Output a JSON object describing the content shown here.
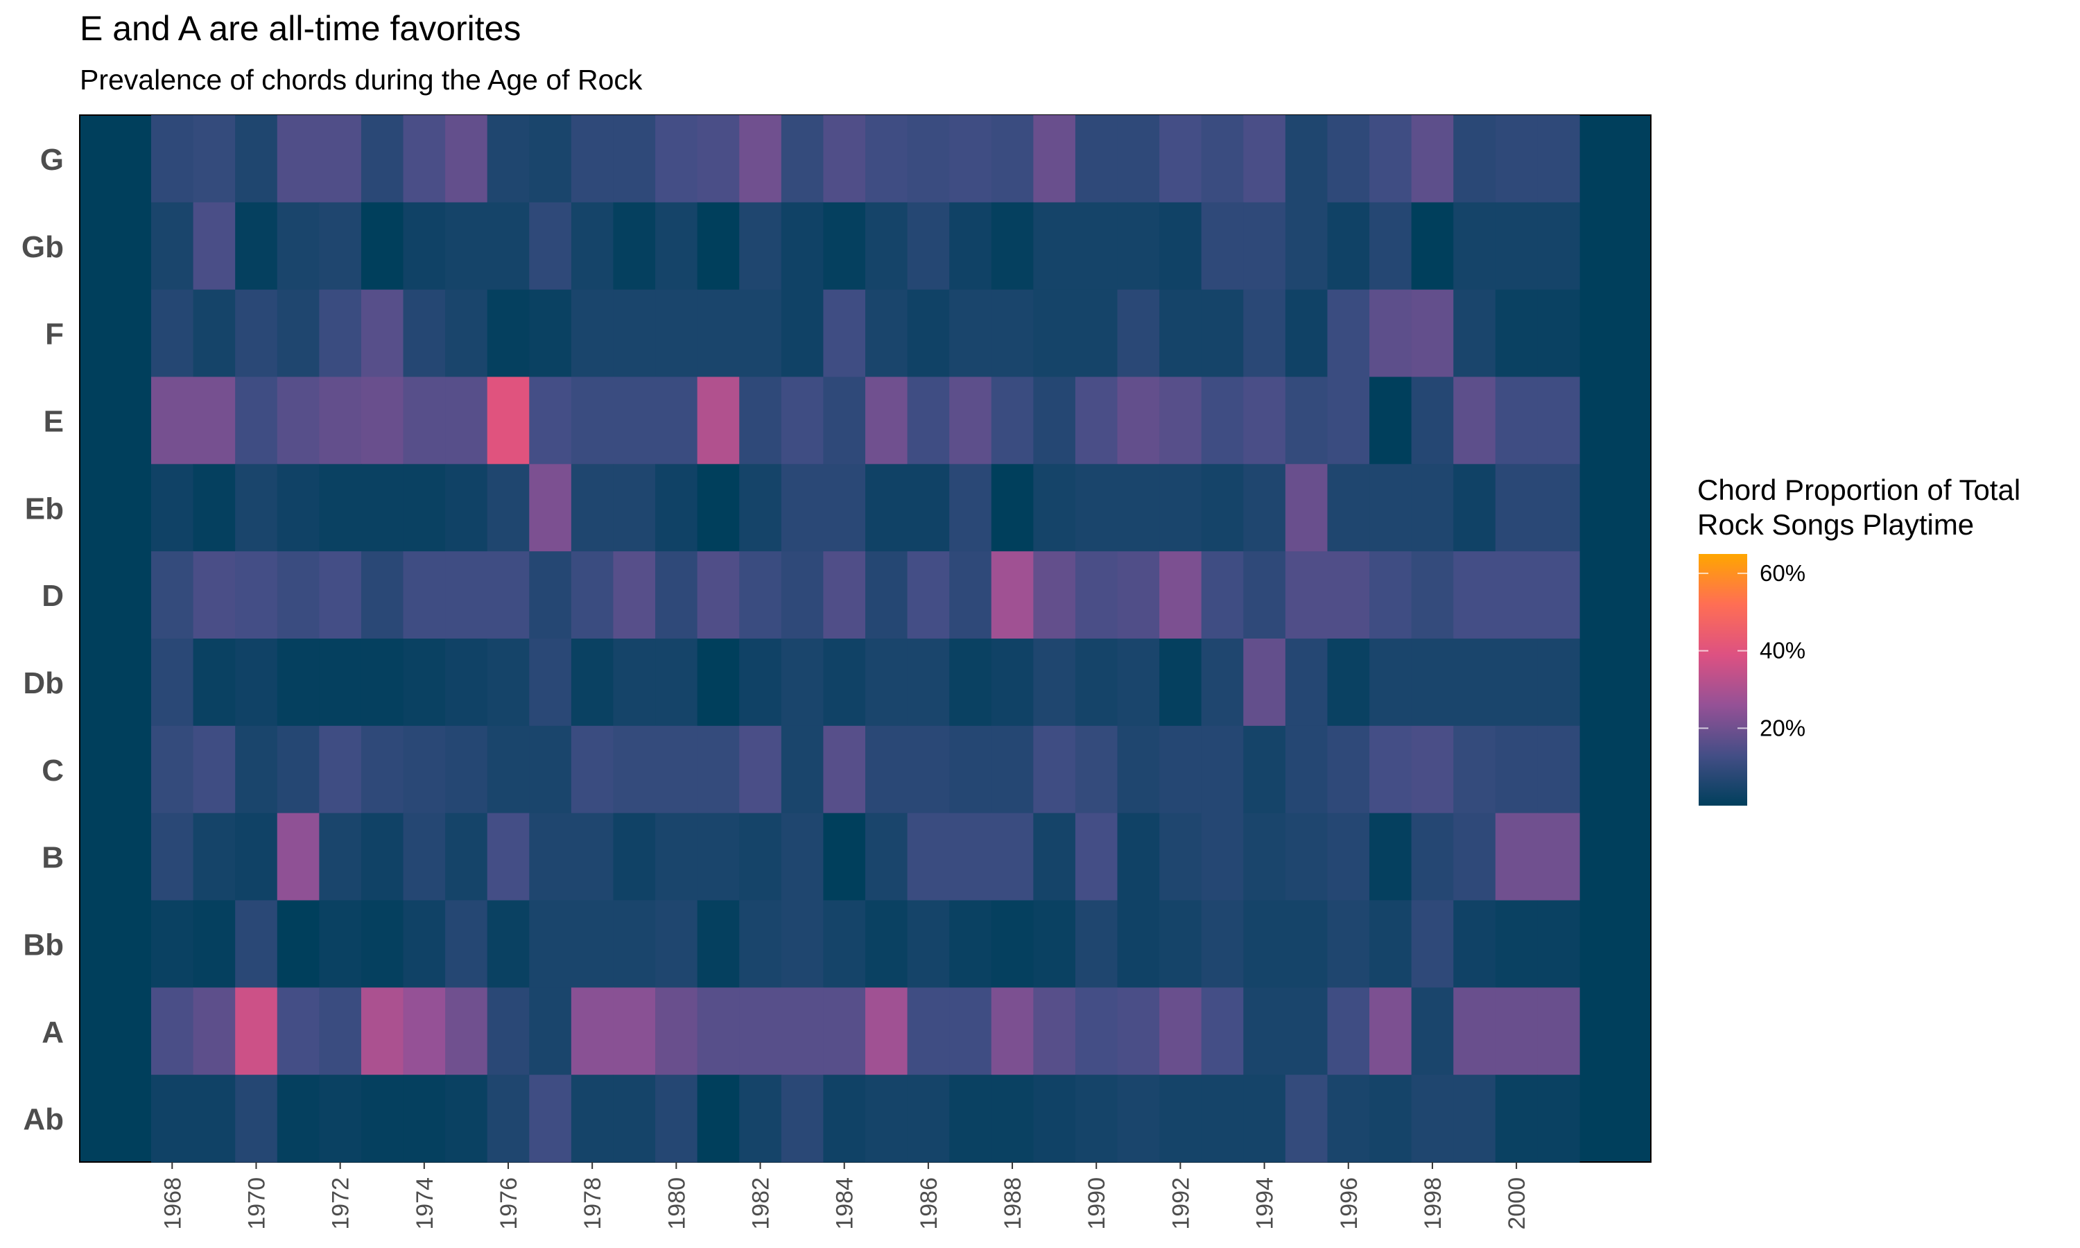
{
  "chart_data": {
    "type": "heatmap",
    "title": "E and A are all-time favorites",
    "subtitle": "Prevalence of chords during the Age of Rock",
    "rows": [
      "G",
      "Gb",
      "F",
      "E",
      "Eb",
      "D",
      "Db",
      "C",
      "B",
      "Bb",
      "A",
      "Ab"
    ],
    "columns": [
      1968,
      1969,
      1970,
      1971,
      1972,
      1973,
      1974,
      1975,
      1976,
      1977,
      1978,
      1979,
      1980,
      1981,
      1982,
      1983,
      1984,
      1985,
      1986,
      1987,
      1988,
      1989,
      1990,
      1991,
      1992,
      1993,
      1994,
      1995,
      1996,
      1997,
      1998,
      1999,
      2000,
      2001
    ],
    "x_ticks": [
      "1968",
      "1970",
      "1972",
      "1974",
      "1976",
      "1978",
      "1980",
      "1982",
      "1984",
      "1986",
      "1988",
      "1990",
      "1992",
      "1994",
      "1996",
      "1998",
      "2000"
    ],
    "x_range": [
      1965.8,
      2003.2
    ],
    "values": [
      [
        9,
        10,
        6,
        15,
        15,
        8,
        14,
        18,
        6,
        5,
        9,
        9,
        13,
        14,
        20,
        10,
        15,
        12,
        11,
        12,
        11,
        19,
        9,
        9,
        13,
        11,
        14,
        6,
        9,
        12,
        17,
        8,
        9,
        9
      ],
      [
        5,
        14,
        1,
        5,
        6,
        0,
        3,
        4,
        4,
        9,
        4,
        1,
        4,
        0,
        6,
        3,
        1,
        4,
        7,
        3,
        1,
        4,
        4,
        4,
        3,
        9,
        9,
        6,
        3,
        7,
        0,
        4,
        4,
        4
      ],
      [
        7,
        4,
        8,
        6,
        11,
        16,
        7,
        5,
        1,
        2,
        5,
        5,
        5,
        5,
        5,
        3,
        12,
        5,
        3,
        5,
        5,
        4,
        4,
        8,
        4,
        4,
        8,
        3,
        11,
        17,
        18,
        5,
        2,
        2
      ],
      [
        21,
        21,
        12,
        16,
        18,
        19,
        16,
        16,
        40,
        13,
        11,
        11,
        11,
        31,
        9,
        12,
        9,
        20,
        12,
        17,
        11,
        7,
        14,
        18,
        16,
        12,
        14,
        10,
        11,
        0,
        7,
        17,
        12,
        12
      ],
      [
        3,
        1,
        5,
        3,
        2,
        2,
        2,
        3,
        6,
        22,
        6,
        6,
        3,
        0,
        4,
        8,
        8,
        3,
        3,
        8,
        0,
        4,
        5,
        5,
        5,
        4,
        6,
        19,
        6,
        6,
        6,
        3,
        8,
        8
      ],
      [
        10,
        14,
        13,
        11,
        13,
        8,
        12,
        12,
        12,
        7,
        11,
        16,
        9,
        15,
        11,
        9,
        15,
        7,
        13,
        9,
        28,
        18,
        14,
        15,
        22,
        12,
        9,
        15,
        15,
        12,
        10,
        13,
        13,
        13
      ],
      [
        8,
        2,
        3,
        1,
        1,
        1,
        2,
        3,
        4,
        8,
        2,
        4,
        4,
        0,
        3,
        5,
        3,
        5,
        5,
        2,
        3,
        6,
        4,
        5,
        1,
        6,
        18,
        7,
        2,
        5,
        5,
        5,
        5,
        5
      ],
      [
        10,
        12,
        5,
        7,
        12,
        9,
        8,
        7,
        5,
        5,
        11,
        10,
        10,
        10,
        14,
        5,
        16,
        8,
        8,
        7,
        7,
        12,
        10,
        6,
        7,
        7,
        4,
        7,
        9,
        13,
        14,
        10,
        9,
        9
      ],
      [
        8,
        4,
        3,
        25,
        5,
        3,
        7,
        4,
        13,
        6,
        6,
        3,
        5,
        5,
        4,
        6,
        0,
        5,
        11,
        11,
        11,
        4,
        13,
        3,
        6,
        7,
        5,
        6,
        7,
        1,
        7,
        9,
        20,
        20
      ],
      [
        2,
        1,
        8,
        0,
        2,
        1,
        3,
        7,
        2,
        5,
        5,
        5,
        6,
        1,
        5,
        6,
        4,
        2,
        4,
        2,
        1,
        2,
        6,
        3,
        4,
        6,
        4,
        4,
        6,
        4,
        9,
        3,
        2,
        2
      ],
      [
        14,
        17,
        36,
        13,
        11,
        30,
        26,
        20,
        8,
        5,
        24,
        24,
        19,
        16,
        16,
        16,
        16,
        28,
        12,
        12,
        22,
        16,
        13,
        14,
        19,
        13,
        5,
        5,
        12,
        22,
        5,
        19,
        19,
        19
      ],
      [
        3,
        3,
        7,
        1,
        2,
        1,
        1,
        2,
        6,
        12,
        4,
        4,
        7,
        0,
        4,
        8,
        3,
        4,
        4,
        2,
        2,
        3,
        4,
        5,
        4,
        4,
        4,
        10,
        5,
        4,
        6,
        6,
        2,
        2
      ]
    ],
    "value_unit": "%",
    "no_data_color": "#003f5c",
    "colorscale": [
      "#003f5c",
      "#444e86",
      "#955196",
      "#dd5182",
      "#ff6e54",
      "#ffa600"
    ],
    "legend": {
      "title_lines": [
        "Chord Proportion of Total",
        "Rock Songs Playtime"
      ],
      "ticks": [
        "20%",
        "40%",
        "60%"
      ],
      "tick_values": [
        20,
        40,
        60
      ],
      "range": [
        0,
        65
      ],
      "placement": "right"
    },
    "grid": false
  }
}
